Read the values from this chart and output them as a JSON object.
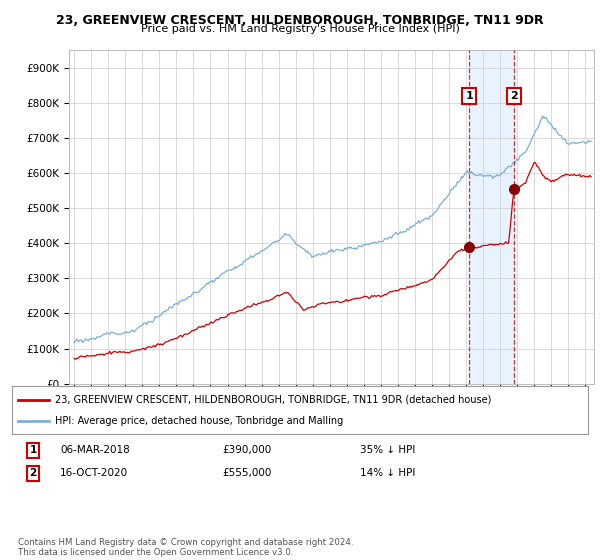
{
  "title_line1": "23, GREENVIEW CRESCENT, HILDENBOROUGH, TONBRIDGE, TN11 9DR",
  "title_line2": "Price paid vs. HM Land Registry's House Price Index (HPI)",
  "ylabel_ticks": [
    "£0",
    "£100K",
    "£200K",
    "£300K",
    "£400K",
    "£500K",
    "£600K",
    "£700K",
    "£800K",
    "£900K"
  ],
  "ytick_values": [
    0,
    100000,
    200000,
    300000,
    400000,
    500000,
    600000,
    700000,
    800000,
    900000
  ],
  "ylim": [
    0,
    950000
  ],
  "xlim_start": 1994.7,
  "xlim_end": 2025.5,
  "hpi_color": "#7bafd4",
  "sold_color": "#cc0000",
  "transaction1_date": "06-MAR-2018",
  "transaction1_price": 390000,
  "transaction1_pct": "35%",
  "transaction2_date": "16-OCT-2020",
  "transaction2_price": 555000,
  "transaction2_pct": "14%",
  "legend_label1": "23, GREENVIEW CRESCENT, HILDENBOROUGH, TONBRIDGE, TN11 9DR (detached house)",
  "legend_label2": "HPI: Average price, detached house, Tonbridge and Malling",
  "footnote": "Contains HM Land Registry data © Crown copyright and database right 2024.\nThis data is licensed under the Open Government Licence v3.0.",
  "marker1_x": 2018.18,
  "marker1_y": 390000,
  "marker2_x": 2020.79,
  "marker2_y": 555000,
  "vline1_x": 2018.18,
  "vline2_x": 2020.79,
  "background_color": "#ffffff",
  "grid_color": "#cccccc",
  "shade_color": "#ddeeff"
}
